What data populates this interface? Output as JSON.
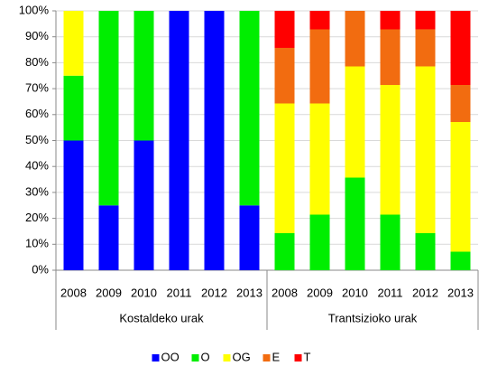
{
  "chart_data": {
    "type": "stacked_bar",
    "groups": [
      {
        "name": "Kostaldeko urak",
        "categories": [
          "2008",
          "2009",
          "2010",
          "2011",
          "2012",
          "2013"
        ]
      },
      {
        "name": "Trantsizioko urak",
        "categories": [
          "2008",
          "2009",
          "2010",
          "2011",
          "2012",
          "2013"
        ]
      }
    ],
    "series": [
      {
        "name": "OO",
        "color": "#0000ff",
        "values": [
          50,
          25,
          50,
          100,
          100,
          25,
          null,
          null,
          null,
          null,
          null,
          null
        ]
      },
      {
        "name": "O",
        "color": "#00ee00",
        "values": [
          25,
          75,
          50,
          null,
          null,
          75,
          14.29,
          21.43,
          35.71,
          21.43,
          14.29,
          7.14
        ]
      },
      {
        "name": "OG",
        "color": "#ffff00",
        "values": [
          25,
          null,
          null,
          null,
          null,
          null,
          50,
          42.86,
          42.86,
          50,
          64.29,
          50
        ]
      },
      {
        "name": "E",
        "color": "#f26c10",
        "values": [
          null,
          null,
          null,
          null,
          null,
          null,
          21.43,
          28.57,
          21.43,
          21.43,
          14.29,
          14.29
        ]
      },
      {
        "name": "T",
        "color": "#ff0000",
        "values": [
          null,
          null,
          null,
          null,
          null,
          null,
          14.29,
          7.14,
          null,
          7.14,
          7.14,
          28.57
        ]
      }
    ],
    "ylim": [
      0,
      100
    ],
    "yticks": [
      {
        "value": 0,
        "label": "0%"
      },
      {
        "value": 10,
        "label": "10%"
      },
      {
        "value": 20,
        "label": "20%"
      },
      {
        "value": 30,
        "label": "30%"
      },
      {
        "value": 40,
        "label": "40%"
      },
      {
        "value": 50,
        "label": "50%"
      },
      {
        "value": 60,
        "label": "60%"
      },
      {
        "value": 70,
        "label": "70%"
      },
      {
        "value": 80,
        "label": "80%"
      },
      {
        "value": 90,
        "label": "90%"
      },
      {
        "value": 100,
        "label": "100%"
      }
    ],
    "grid": true,
    "legend": "bottom"
  }
}
